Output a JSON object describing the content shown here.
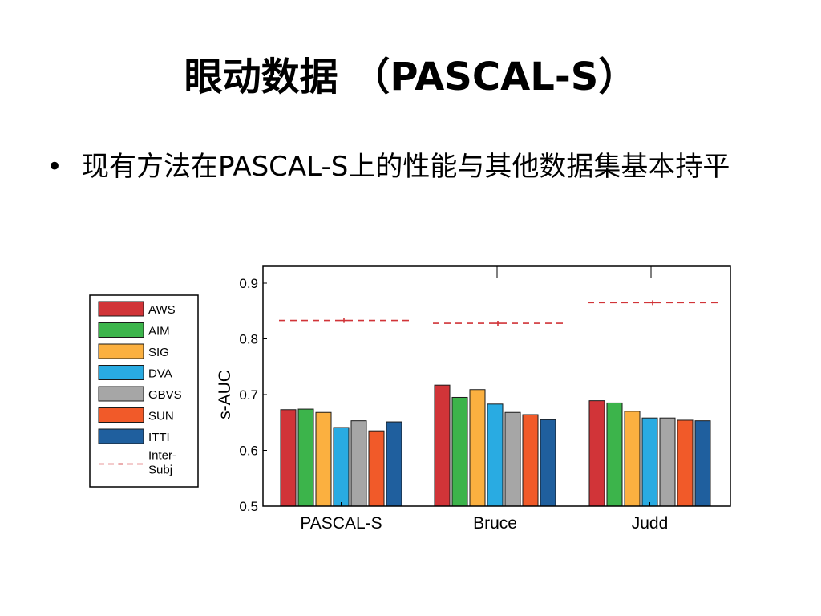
{
  "slide": {
    "title": "眼动数据 （PASCAL-S）",
    "bullet_symbol": "•",
    "bullet_text": "现有方法在PASCAL-S上的性能与其他数据集基本持平"
  },
  "chart_data": {
    "type": "bar",
    "title": "",
    "xlabel": "",
    "ylabel": "s-AUC",
    "ylim": [
      0.5,
      0.9
    ],
    "yticks": [
      0.5,
      0.6,
      0.7,
      0.8,
      0.9
    ],
    "ytick_labels": [
      "0.5",
      "0.6",
      "0.7",
      "0.8",
      "0.9"
    ],
    "grid": false,
    "legend_position": "left, outside plot",
    "categories": [
      "PASCAL-S",
      "Bruce",
      "Judd"
    ],
    "series": [
      {
        "name": "AWS",
        "color": "#d13438",
        "values": [
          0.673,
          0.717,
          0.689
        ]
      },
      {
        "name": "AIM",
        "color": "#3cb44b",
        "values": [
          0.674,
          0.695,
          0.685
        ]
      },
      {
        "name": "SIG",
        "color": "#fbb040",
        "values": [
          0.668,
          0.709,
          0.67
        ]
      },
      {
        "name": "DVA",
        "color": "#29abe2",
        "values": [
          0.641,
          0.683,
          0.658
        ]
      },
      {
        "name": "GBVS",
        "color": "#a6a6a6",
        "values": [
          0.653,
          0.668,
          0.658
        ]
      },
      {
        "name": "SUN",
        "color": "#f15a29",
        "values": [
          0.635,
          0.664,
          0.654
        ]
      },
      {
        "name": "ITTI",
        "color": "#1f5f9e",
        "values": [
          0.651,
          0.655,
          0.653
        ]
      }
    ],
    "reference": {
      "name": "Inter-Subj",
      "label_lines": [
        "Inter-",
        "Subj"
      ],
      "color": "#d13438",
      "values": [
        0.833,
        0.828,
        0.865
      ]
    }
  }
}
